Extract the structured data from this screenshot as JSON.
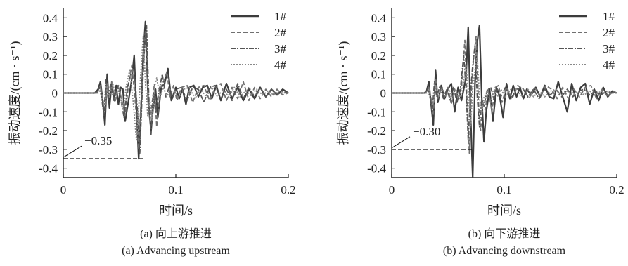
{
  "chart_data": [
    {
      "type": "line",
      "panel": "a",
      "xlabel": "时间/s",
      "ylabel": "振动速度/(cm · s⁻¹)",
      "xlim": [
        0,
        0.2
      ],
      "ylim": [
        -0.45,
        0.45
      ],
      "xticks": [
        0,
        0.1,
        0.2
      ],
      "xtick_labels": [
        "0",
        "0.1",
        "0.2"
      ],
      "yticks": [
        0.4,
        0.3,
        0.2,
        0.1,
        0,
        -0.1,
        -0.2,
        -0.3,
        -0.4
      ],
      "ytick_labels": [
        "0.4",
        "0.3",
        "0.2",
        "0.1",
        "0",
        "-0.1",
        "-0.2",
        "-0.3",
        "-0.4"
      ],
      "grid": false,
      "legend": "top-right",
      "caption_cn": "(a) 向上游推进",
      "caption_en": "(a) Advancing upstream",
      "annotation": {
        "text": "−0.35",
        "y": -0.35,
        "x_end": 0.072
      },
      "series": [
        {
          "name": "1#",
          "style": "solid",
          "color": "#3c3c3c",
          "x": [
            0,
            0.028,
            0.031,
            0.033,
            0.035,
            0.037,
            0.039,
            0.041,
            0.043,
            0.045,
            0.047,
            0.049,
            0.051,
            0.053,
            0.055,
            0.058,
            0.061,
            0.063,
            0.065,
            0.067,
            0.069,
            0.071,
            0.073,
            0.0755,
            0.078,
            0.08,
            0.082,
            0.084,
            0.087,
            0.09,
            0.093,
            0.096,
            0.1,
            0.103,
            0.106,
            0.109,
            0.112,
            0.116,
            0.12,
            0.124,
            0.128,
            0.132,
            0.136,
            0.14,
            0.145,
            0.15,
            0.155,
            0.16,
            0.165,
            0.17,
            0.175,
            0.18,
            0.185,
            0.19,
            0.195,
            0.2
          ],
          "y": [
            0,
            0,
            0.02,
            0.06,
            -0.04,
            -0.17,
            0.1,
            -0.08,
            0.05,
            -0.03,
            0.04,
            -0.06,
            0.03,
            0.02,
            -0.15,
            -0.04,
            0.08,
            0.2,
            -0.08,
            -0.35,
            -0.1,
            0.2,
            0.38,
            -0.05,
            -0.2,
            -0.07,
            0.02,
            -0.13,
            0.03,
            0.05,
            0.13,
            -0.04,
            0.03,
            -0.03,
            0.02,
            -0.06,
            0.03,
            0.04,
            -0.02,
            0.03,
            0.04,
            -0.03,
            0.04,
            -0.04,
            0.05,
            -0.03,
            0.03,
            -0.04,
            0.02,
            -0.03,
            0.03,
            -0.02,
            0.02,
            -0.01,
            0.02,
            0
          ]
        },
        {
          "name": "2#",
          "style": "dashed",
          "color": "#707070",
          "x": [
            0,
            0.03,
            0.033,
            0.035,
            0.037,
            0.039,
            0.041,
            0.043,
            0.046,
            0.049,
            0.052,
            0.055,
            0.058,
            0.061,
            0.064,
            0.067,
            0.069,
            0.071,
            0.073,
            0.075,
            0.077,
            0.079,
            0.081,
            0.083,
            0.086,
            0.089,
            0.092,
            0.095,
            0.098,
            0.101,
            0.105,
            0.11,
            0.115,
            0.12,
            0.125,
            0.13,
            0.135,
            0.14,
            0.145,
            0.15,
            0.155,
            0.16,
            0.165,
            0.17,
            0.175,
            0.18,
            0.185,
            0.19,
            0.195,
            0.2
          ],
          "y": [
            0,
            0,
            0.04,
            -0.03,
            -0.1,
            0.05,
            -0.03,
            0.06,
            -0.05,
            0.04,
            -0.04,
            -0.12,
            0.05,
            0.15,
            -0.05,
            -0.3,
            -0.05,
            0.15,
            0.33,
            0.02,
            -0.15,
            -0.05,
            0.05,
            -0.18,
            0.02,
            0.06,
            0.11,
            -0.02,
            0.04,
            -0.04,
            0.03,
            0.04,
            -0.05,
            0.03,
            0.04,
            -0.04,
            0.03,
            0.05,
            -0.04,
            0.03,
            -0.03,
            0.06,
            -0.04,
            0.03,
            -0.03,
            0.02,
            -0.02,
            0.02,
            -0.01,
            0
          ]
        },
        {
          "name": "3#",
          "style": "dashdot",
          "color": "#555555",
          "x": [
            0,
            0.03,
            0.032,
            0.034,
            0.036,
            0.038,
            0.04,
            0.042,
            0.045,
            0.048,
            0.051,
            0.054,
            0.057,
            0.06,
            0.063,
            0.066,
            0.068,
            0.07,
            0.072,
            0.074,
            0.076,
            0.078,
            0.08,
            0.082,
            0.085,
            0.088,
            0.091,
            0.094,
            0.097,
            0.1,
            0.105,
            0.11,
            0.115,
            0.12,
            0.125,
            0.13,
            0.135,
            0.14,
            0.145,
            0.15,
            0.155,
            0.16,
            0.165,
            0.17,
            0.175,
            0.18,
            0.185,
            0.19,
            0.195,
            0.2
          ],
          "y": [
            0,
            0,
            0.03,
            -0.02,
            -0.12,
            0.07,
            -0.04,
            0.05,
            -0.04,
            0.04,
            -0.03,
            -0.13,
            0.03,
            0.1,
            0.12,
            -0.1,
            -0.32,
            -0.02,
            0.22,
            0.36,
            -0.02,
            -0.22,
            0.0,
            -0.1,
            0.01,
            0.1,
            -0.02,
            0.03,
            -0.03,
            0.02,
            0.03,
            -0.04,
            0.03,
            0.02,
            -0.05,
            0.03,
            0.04,
            -0.03,
            0.02,
            -0.04,
            0.05,
            -0.03,
            0.03,
            -0.02,
            0.03,
            -0.02,
            0.02,
            -0.01,
            0.01,
            0
          ]
        },
        {
          "name": "4#",
          "style": "dotted",
          "color": "#8a8a8a",
          "x": [
            0,
            0.031,
            0.033,
            0.035,
            0.037,
            0.039,
            0.041,
            0.044,
            0.047,
            0.05,
            0.053,
            0.056,
            0.059,
            0.062,
            0.065,
            0.067,
            0.069,
            0.071,
            0.073,
            0.075,
            0.077,
            0.079,
            0.081,
            0.083,
            0.086,
            0.089,
            0.092,
            0.095,
            0.098,
            0.102,
            0.107,
            0.112,
            0.117,
            0.122,
            0.127,
            0.132,
            0.137,
            0.142,
            0.147,
            0.152,
            0.157,
            0.162,
            0.167,
            0.172,
            0.177,
            0.182,
            0.187,
            0.192,
            0.197,
            0.2
          ],
          "y": [
            0,
            0,
            0.02,
            -0.03,
            -0.08,
            0.04,
            -0.02,
            0.05,
            -0.03,
            0.03,
            -0.1,
            0.04,
            0.12,
            -0.04,
            -0.25,
            -0.08,
            0.12,
            0.3,
            0.05,
            -0.12,
            -0.04,
            -0.15,
            0.03,
            0.08,
            -0.02,
            0.03,
            -0.02,
            0.02,
            0.03,
            -0.03,
            0.02,
            0.03,
            -0.03,
            0.02,
            -0.02,
            0.03,
            -0.02,
            0.02,
            -0.02,
            0.03,
            -0.02,
            0.01,
            -0.01,
            0.02,
            -0.01,
            0.01,
            -0.01,
            0.01,
            0,
            0
          ]
        }
      ]
    },
    {
      "type": "line",
      "panel": "b",
      "xlabel": "时间/s",
      "ylabel": "振动速度/(cm · s⁻¹)",
      "xlim": [
        0,
        0.2
      ],
      "ylim": [
        -0.45,
        0.45
      ],
      "xticks": [
        0,
        0.1,
        0.2
      ],
      "xtick_labels": [
        "0",
        "0.1",
        "0.2"
      ],
      "yticks": [
        0.4,
        0.3,
        0.2,
        0.1,
        0,
        -0.1,
        -0.2,
        -0.3,
        -0.4
      ],
      "ytick_labels": [
        "0.4",
        "0.3",
        "0.2",
        "0.1",
        "0",
        "-0.1",
        "-0.2",
        "-0.3",
        "-0.4"
      ],
      "grid": false,
      "legend": "top-right",
      "caption_cn": "(b) 向下游推进",
      "caption_en": "(b) Advancing downstream",
      "annotation": {
        "text": "−0.30",
        "y": -0.3,
        "x_end": 0.072
      },
      "series": [
        {
          "name": "1#",
          "style": "solid",
          "color": "#3c3c3c",
          "x": [
            0,
            0.029,
            0.031,
            0.033,
            0.035,
            0.037,
            0.039,
            0.041,
            0.044,
            0.047,
            0.05,
            0.053,
            0.056,
            0.059,
            0.062,
            0.064,
            0.066,
            0.068,
            0.07,
            0.072,
            0.074,
            0.076,
            0.078,
            0.08,
            0.082,
            0.084,
            0.087,
            0.09,
            0.093,
            0.096,
            0.099,
            0.102,
            0.105,
            0.108,
            0.111,
            0.114,
            0.117,
            0.12,
            0.124,
            0.128,
            0.132,
            0.136,
            0.14,
            0.144,
            0.148,
            0.152,
            0.156,
            0.16,
            0.164,
            0.168,
            0.172,
            0.176,
            0.18,
            0.184,
            0.188,
            0.192,
            0.196,
            0.2
          ],
          "y": [
            0,
            0,
            0.01,
            0.06,
            -0.06,
            -0.17,
            0.12,
            -0.05,
            0.04,
            -0.03,
            0.02,
            0.05,
            -0.1,
            0.03,
            -0.04,
            0.02,
            0.08,
            0.35,
            -0.1,
            -0.45,
            0.05,
            0.27,
            0.36,
            -0.02,
            -0.26,
            -0.1,
            0.02,
            -0.15,
            0.03,
            -0.02,
            -0.13,
            0.05,
            -0.03,
            0.04,
            -0.02,
            0.03,
            -0.03,
            0.02,
            -0.01,
            0.03,
            -0.02,
            0.04,
            -0.02,
            -0.03,
            0.06,
            -0.02,
            -0.1,
            0.05,
            -0.04,
            0.03,
            0.05,
            -0.06,
            0.02,
            -0.04,
            0.03,
            -0.02,
            0.01,
            0
          ]
        },
        {
          "name": "2#",
          "style": "dashed",
          "color": "#707070",
          "x": [
            0,
            0.03,
            0.033,
            0.035,
            0.037,
            0.039,
            0.041,
            0.044,
            0.047,
            0.05,
            0.053,
            0.056,
            0.059,
            0.062,
            0.065,
            0.067,
            0.069,
            0.071,
            0.073,
            0.075,
            0.077,
            0.079,
            0.081,
            0.083,
            0.086,
            0.089,
            0.092,
            0.095,
            0.098,
            0.102,
            0.107,
            0.112,
            0.117,
            0.122,
            0.127,
            0.132,
            0.137,
            0.142,
            0.147,
            0.152,
            0.157,
            0.162,
            0.167,
            0.172,
            0.177,
            0.182,
            0.187,
            0.192,
            0.197,
            0.2
          ],
          "y": [
            0,
            0,
            0.03,
            -0.03,
            -0.12,
            0.08,
            -0.03,
            0.03,
            -0.02,
            0.03,
            -0.06,
            0.02,
            -0.03,
            0.03,
            0.28,
            -0.05,
            -0.32,
            0.04,
            0.2,
            0.3,
            -0.04,
            -0.2,
            -0.05,
            -0.09,
            0.02,
            -0.1,
            0.03,
            0.04,
            -0.05,
            0.03,
            -0.03,
            0.04,
            0.02,
            -0.03,
            0.03,
            -0.02,
            0.04,
            0.02,
            -0.03,
            0.03,
            -0.03,
            0.02,
            -0.02,
            0.03,
            0.04,
            -0.03,
            0.02,
            -0.02,
            0.01,
            0
          ]
        },
        {
          "name": "3#",
          "style": "dashdot",
          "color": "#555555",
          "x": [
            0,
            0.03,
            0.032,
            0.034,
            0.036,
            0.038,
            0.04,
            0.043,
            0.046,
            0.049,
            0.052,
            0.055,
            0.058,
            0.061,
            0.064,
            0.066,
            0.068,
            0.07,
            0.072,
            0.074,
            0.076,
            0.078,
            0.08,
            0.082,
            0.085,
            0.088,
            0.091,
            0.094,
            0.097,
            0.101,
            0.106,
            0.111,
            0.116,
            0.121,
            0.126,
            0.131,
            0.136,
            0.141,
            0.146,
            0.151,
            0.156,
            0.161,
            0.166,
            0.171,
            0.176,
            0.181,
            0.186,
            0.191,
            0.196,
            0.2
          ],
          "y": [
            0,
            0,
            0.02,
            -0.02,
            -0.1,
            0.06,
            -0.02,
            0.04,
            -0.03,
            0.02,
            -0.04,
            0.03,
            -0.05,
            0.02,
            0.2,
            0.03,
            -0.25,
            0.0,
            0.15,
            0.25,
            -0.02,
            -0.18,
            -0.03,
            -0.07,
            0.02,
            0.03,
            -0.03,
            0.02,
            -0.02,
            0.03,
            -0.03,
            0.02,
            0.03,
            -0.02,
            0.02,
            -0.03,
            0.02,
            -0.01,
            0.02,
            -0.02,
            0.02,
            -0.02,
            0.01,
            0.02,
            -0.01,
            0.01,
            -0.01,
            0.01,
            0,
            0
          ]
        },
        {
          "name": "4#",
          "style": "dotted",
          "color": "#8a8a8a",
          "x": [
            0,
            0.031,
            0.033,
            0.035,
            0.037,
            0.039,
            0.042,
            0.045,
            0.048,
            0.051,
            0.054,
            0.057,
            0.06,
            0.063,
            0.066,
            0.068,
            0.07,
            0.072,
            0.074,
            0.076,
            0.078,
            0.08,
            0.082,
            0.085,
            0.088,
            0.091,
            0.094,
            0.097,
            0.101,
            0.106,
            0.111,
            0.116,
            0.121,
            0.126,
            0.131,
            0.136,
            0.141,
            0.146,
            0.151,
            0.156,
            0.161,
            0.166,
            0.171,
            0.176,
            0.181,
            0.186,
            0.191,
            0.196,
            0.2
          ],
          "y": [
            0,
            0,
            0.02,
            -0.02,
            -0.06,
            0.04,
            -0.02,
            0.03,
            -0.02,
            0.02,
            -0.03,
            0.02,
            -0.03,
            0.02,
            0.15,
            0.02,
            -0.18,
            0.02,
            0.12,
            0.2,
            -0.02,
            -0.12,
            -0.02,
            0.01,
            -0.05,
            0.02,
            -0.02,
            0.02,
            -0.02,
            0.02,
            0.02,
            -0.02,
            0.02,
            -0.02,
            0.01,
            -0.02,
            0.01,
            0.02,
            -0.01,
            0.01,
            -0.01,
            0.01,
            -0.01,
            0.01,
            -0.01,
            0.01,
            0,
            0,
            0
          ]
        }
      ]
    }
  ]
}
